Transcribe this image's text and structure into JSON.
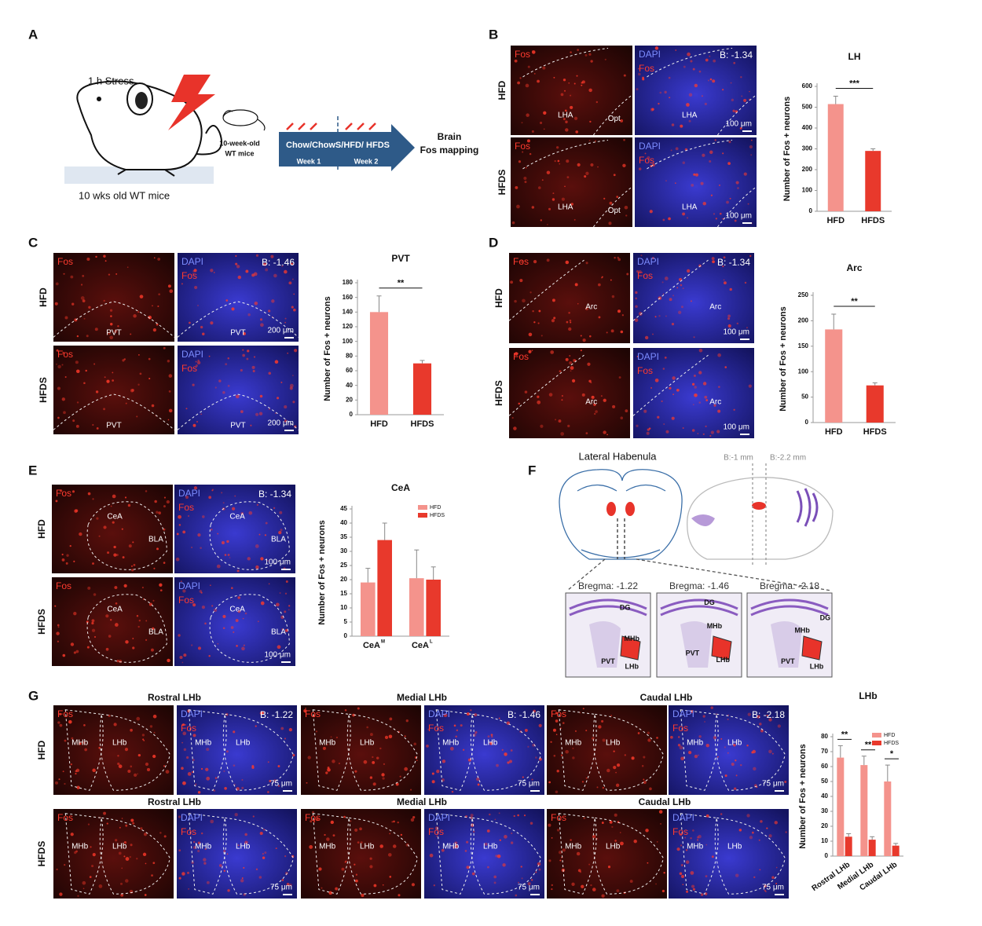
{
  "chart_data": [
    {
      "type": "bar",
      "title": "LH",
      "y_label": "Number of Fos + neurons",
      "categories": [
        "HFD",
        "HFDS"
      ],
      "values": [
        515,
        290
      ],
      "errors": [
        38,
        10
      ],
      "colors": [
        "#f4938c",
        "#e8392c"
      ],
      "ylim": [
        0,
        600
      ],
      "yticks": [
        0,
        100,
        200,
        300,
        400,
        500,
        600
      ],
      "significance": [
        "***"
      ]
    },
    {
      "type": "bar",
      "title": "PVT",
      "y_label": "Number of Fos + neurons",
      "categories": [
        "HFD",
        "HFDS"
      ],
      "values": [
        140,
        70
      ],
      "errors": [
        22,
        4
      ],
      "colors": [
        "#f4938c",
        "#e8392c"
      ],
      "ylim": [
        0,
        180
      ],
      "yticks": [
        0,
        20,
        40,
        60,
        80,
        100,
        120,
        140,
        160,
        180
      ],
      "significance": [
        "**"
      ]
    },
    {
      "type": "bar",
      "title": "Arc",
      "y_label": "Number of Fos + neurons",
      "categories": [
        "HFD",
        "HFDS"
      ],
      "values": [
        183,
        73
      ],
      "errors": [
        30,
        5
      ],
      "colors": [
        "#f4938c",
        "#e8392c"
      ],
      "ylim": [
        0,
        250
      ],
      "yticks": [
        0,
        50,
        100,
        150,
        200,
        250
      ],
      "significance": [
        "**"
      ]
    },
    {
      "type": "grouped_bar",
      "title": "CeA",
      "y_label": "Number of Fos + neurons",
      "categories": [
        "CeA",
        "CeA"
      ],
      "category_superscripts": [
        "M",
        "L"
      ],
      "series": [
        {
          "name": "HFD",
          "color": "#f4938c",
          "values": [
            19,
            20.5
          ],
          "errors": [
            5,
            10
          ]
        },
        {
          "name": "HFDS",
          "color": "#e8392c",
          "values": [
            34,
            20
          ],
          "errors": [
            6,
            4.5
          ]
        }
      ],
      "ylim": [
        0,
        45
      ],
      "yticks": [
        0,
        5,
        10,
        15,
        20,
        25,
        30,
        35,
        40,
        45
      ],
      "legend": "upper right"
    },
    {
      "type": "grouped_bar",
      "title": "LHb",
      "y_label": "Number of Fos + neurons",
      "categories": [
        "Rostral LHb",
        "Medial LHb",
        "Caudal LHb"
      ],
      "series": [
        {
          "name": "HFD",
          "color": "#f4938c",
          "values": [
            66,
            61,
            50
          ],
          "errors": [
            8,
            6,
            11
          ]
        },
        {
          "name": "HFDS",
          "color": "#e8392c",
          "values": [
            13,
            11,
            7
          ],
          "errors": [
            2,
            2,
            1.5
          ]
        }
      ],
      "ylim": [
        0,
        80
      ],
      "yticks": [
        0,
        10,
        20,
        30,
        40,
        50,
        60,
        70,
        80
      ],
      "significance": [
        "**",
        "**",
        "*"
      ],
      "legend": "upper right"
    }
  ],
  "figure": {
    "letters": [
      "A",
      "B",
      "C",
      "D",
      "E",
      "F",
      "G"
    ],
    "A": {
      "stress": "1 h Stress",
      "mouse": "10 wks old WT mice",
      "small_mouse": [
        "10-week-old",
        "WT mice"
      ],
      "diets": "Chow/ChowS/HFD/ HFDS",
      "weeks": [
        "Week 1",
        "Week 2"
      ],
      "outcome": [
        "Brain",
        "Fos mapping"
      ]
    },
    "B": {
      "rows": [
        "HFD",
        "HFDS"
      ],
      "tiles": [
        [
          {
            "stain": [
              "Fos"
            ],
            "regions": [
              "LHA",
              "Opt"
            ]
          },
          {
            "stain": [
              "DAPI",
              "Fos"
            ],
            "bregma": "B: -1.34",
            "regions": [
              "LHA"
            ],
            "scale": "100 μm"
          }
        ],
        [
          {
            "stain": [
              "Fos"
            ],
            "regions": [
              "LHA",
              "Opt"
            ]
          },
          {
            "stain": [
              "DAPI",
              "Fos"
            ],
            "regions": [
              "LHA"
            ],
            "scale": "100 μm"
          }
        ]
      ]
    },
    "C": {
      "rows": [
        "HFD",
        "HFDS"
      ],
      "tiles": [
        [
          {
            "stain": [
              "Fos"
            ],
            "regions": [
              "PVT"
            ]
          },
          {
            "stain": [
              "DAPI",
              "Fos"
            ],
            "bregma": "B: -1.46",
            "regions": [
              "PVT"
            ],
            "scale": "200 μm"
          }
        ],
        [
          {
            "stain": [
              "Fos"
            ],
            "regions": [
              "PVT"
            ]
          },
          {
            "stain": [
              "DAPI",
              "Fos"
            ],
            "regions": [
              "PVT"
            ],
            "scale": "200 μm"
          }
        ]
      ]
    },
    "D": {
      "rows": [
        "HFD",
        "HFDS"
      ],
      "tiles": [
        [
          {
            "stain": [
              "Fos"
            ],
            "regions": [
              "Arc"
            ]
          },
          {
            "stain": [
              "DAPI",
              "Fos"
            ],
            "bregma": "B: -1.34",
            "regions": [
              "Arc"
            ],
            "scale": "100 μm"
          }
        ],
        [
          {
            "stain": [
              "Fos"
            ],
            "regions": [
              "Arc"
            ]
          },
          {
            "stain": [
              "DAPI",
              "Fos"
            ],
            "regions": [
              "Arc"
            ],
            "scale": "100 μm"
          }
        ]
      ]
    },
    "E": {
      "rows": [
        "HFD",
        "HFDS"
      ],
      "tiles": [
        [
          {
            "stain": [
              "Fos"
            ],
            "regions": [
              "CeA",
              "BLA"
            ]
          },
          {
            "stain": [
              "DAPI",
              "Fos"
            ],
            "bregma": "B: -1.34",
            "regions": [
              "CeA",
              "BLA"
            ],
            "scale": "100 μm"
          }
        ],
        [
          {
            "stain": [
              "Fos"
            ],
            "regions": [
              "CeA",
              "BLA"
            ]
          },
          {
            "stain": [
              "DAPI",
              "Fos"
            ],
            "regions": [
              "CeA",
              "BLA"
            ],
            "scale": "100 μm"
          }
        ]
      ]
    },
    "F": {
      "title": "Lateral Habenula",
      "sagittal_marks": [
        "B:-1 mm",
        "B:-2.2 mm"
      ],
      "sections": [
        {
          "bregma": "Bregma: -1.22",
          "labels": [
            "DG",
            "MHb",
            "PVT",
            "LHb"
          ]
        },
        {
          "bregma": "Bregma: -1.46",
          "labels": [
            "DG",
            "MHb",
            "PVT",
            "LHb"
          ]
        },
        {
          "bregma": "Bregma: -2.18",
          "labels": [
            "DG",
            "MHb",
            "PVT",
            "LHb"
          ]
        }
      ]
    },
    "G": {
      "rows": [
        "HFD",
        "HFDS"
      ],
      "headers": [
        [
          "Rostral LHb",
          "Medial LHb",
          "Caudal LHb"
        ],
        [
          "Rostral LHb",
          "Medial LHb",
          "Caudal LHb"
        ]
      ],
      "tiles": [
        [
          {
            "stain": [
              "Fos"
            ],
            "regions": [
              "MHb",
              "LHb"
            ]
          },
          {
            "stain": [
              "DAPI",
              "Fos"
            ],
            "bregma": "B: -1.22",
            "regions": [
              "MHb",
              "LHb"
            ],
            "scale": "75 μm"
          },
          {
            "stain": [
              "Fos"
            ],
            "regions": [
              "MHb",
              "LHb"
            ]
          },
          {
            "stain": [
              "DAPI",
              "Fos"
            ],
            "bregma": "B: -1.46",
            "regions": [
              "MHb",
              "LHb"
            ],
            "scale": "75 μm"
          },
          {
            "stain": [
              "Fos"
            ],
            "regions": [
              "MHb",
              "LHb"
            ]
          },
          {
            "stain": [
              "DAPI",
              "Fos"
            ],
            "bregma": "B: -2.18",
            "regions": [
              "MHb",
              "LHb"
            ],
            "scale": "75 μm"
          }
        ],
        [
          {
            "stain": [
              "Fos"
            ],
            "regions": [
              "MHb",
              "LHb"
            ]
          },
          {
            "stain": [
              "DAPI",
              "Fos"
            ],
            "regions": [
              "MHb",
              "LHb"
            ],
            "scale": "75 μm"
          },
          {
            "stain": [
              "Fos"
            ],
            "regions": [
              "MHb",
              "LHb"
            ]
          },
          {
            "stain": [
              "DAPI",
              "Fos"
            ],
            "regions": [
              "MHb",
              "LHb"
            ],
            "scale": "75 μm"
          },
          {
            "stain": [
              "Fos"
            ],
            "regions": [
              "MHb",
              "LHb"
            ]
          },
          {
            "stain": [
              "DAPI",
              "Fos"
            ],
            "regions": [
              "MHb",
              "LHb"
            ],
            "scale": "75 μm"
          }
        ]
      ]
    }
  }
}
